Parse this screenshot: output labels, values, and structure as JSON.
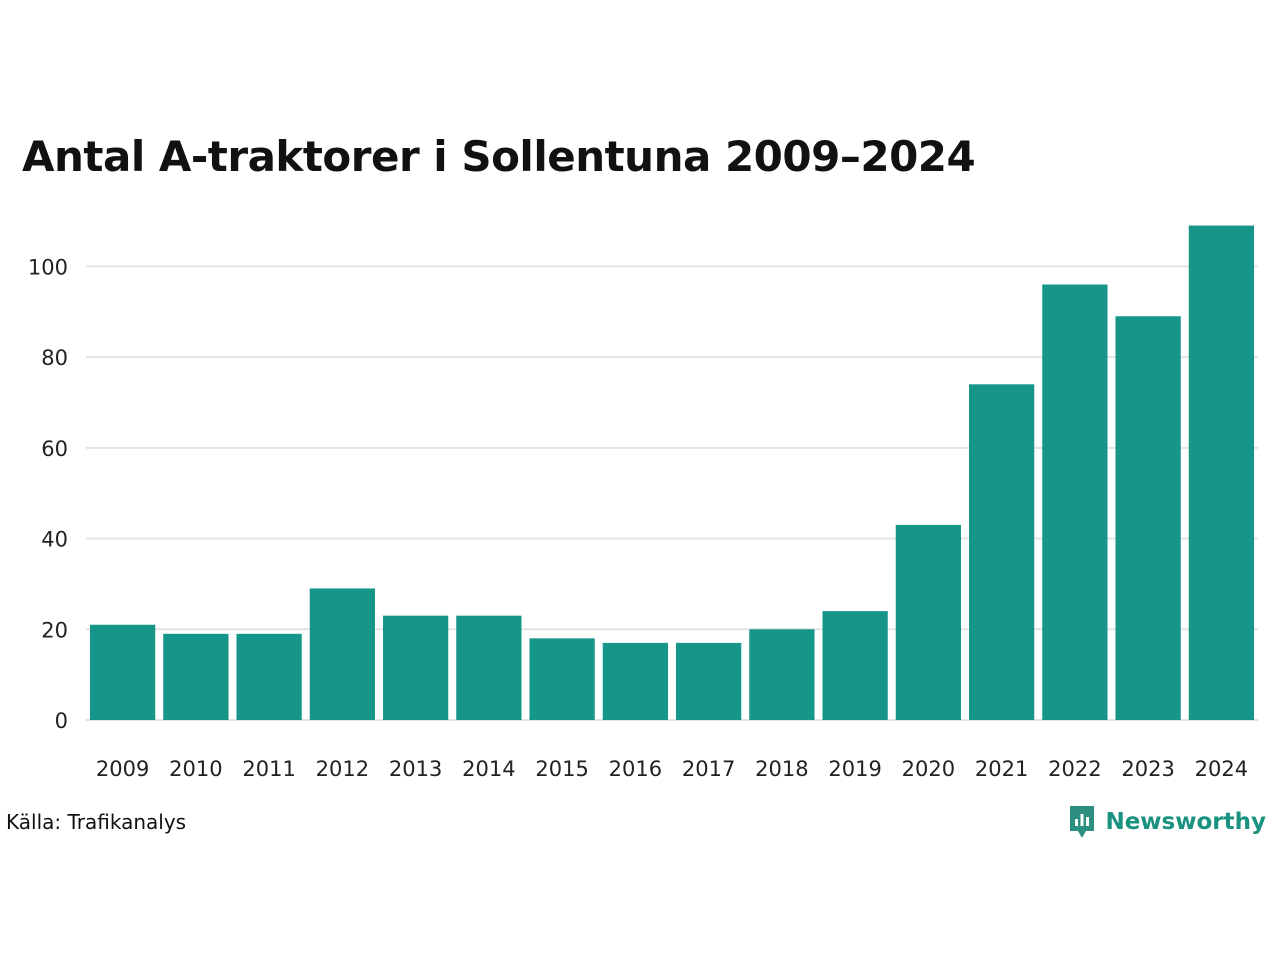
{
  "title": "Antal A-traktorer i Sollentuna 2009–2024",
  "source": "Källa: Trafikanalys",
  "brand": {
    "name": "Newsworthy",
    "icon": "newsworthy-logo-icon",
    "color": "#1a9280"
  },
  "chart_data": {
    "type": "bar",
    "title": "Antal A-traktorer i Sollentuna 2009–2024",
    "xlabel": "",
    "ylabel": "",
    "categories": [
      "2009",
      "2010",
      "2011",
      "2012",
      "2013",
      "2014",
      "2015",
      "2016",
      "2017",
      "2018",
      "2019",
      "2020",
      "2021",
      "2022",
      "2023",
      "2024"
    ],
    "values": [
      21,
      19,
      19,
      29,
      23,
      23,
      18,
      17,
      17,
      20,
      24,
      43,
      74,
      96,
      89,
      109
    ],
    "ylim": [
      0,
      110
    ],
    "yticks": [
      0,
      20,
      40,
      60,
      80,
      100
    ],
    "grid": true,
    "bar_color": "#159688",
    "grid_color": "#e3e3e3"
  }
}
